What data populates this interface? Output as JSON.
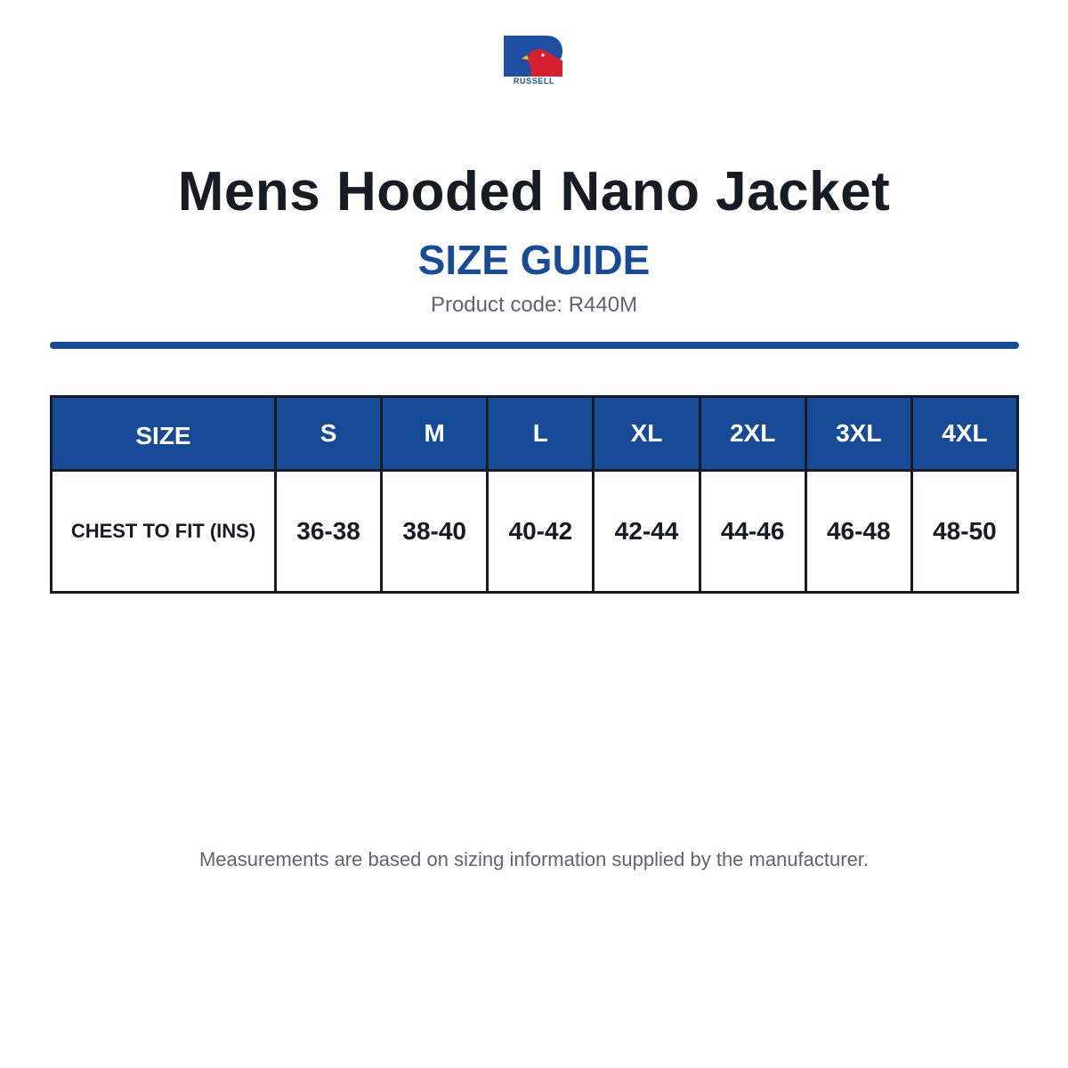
{
  "brand": {
    "name": "RUSSELL",
    "primary_color": "#1e4fa3",
    "accent_color": "#d4202f"
  },
  "header": {
    "title": "Mens Hooded Nano Jacket",
    "subtitle": "SIZE GUIDE",
    "product_code": "Product code: R440M"
  },
  "size_table": {
    "header_color": "#174a97",
    "row_header": "SIZE",
    "sizes": [
      "S",
      "M",
      "L",
      "XL",
      "2XL",
      "3XL",
      "4XL"
    ],
    "rows": [
      {
        "label": "CHEST TO FIT (INS)",
        "values": [
          "36-38",
          "38-40",
          "40-42",
          "42-44",
          "44-46",
          "46-48",
          "48-50"
        ]
      }
    ]
  },
  "footer": {
    "note": "Measurements are based on sizing information supplied by the manufacturer."
  }
}
